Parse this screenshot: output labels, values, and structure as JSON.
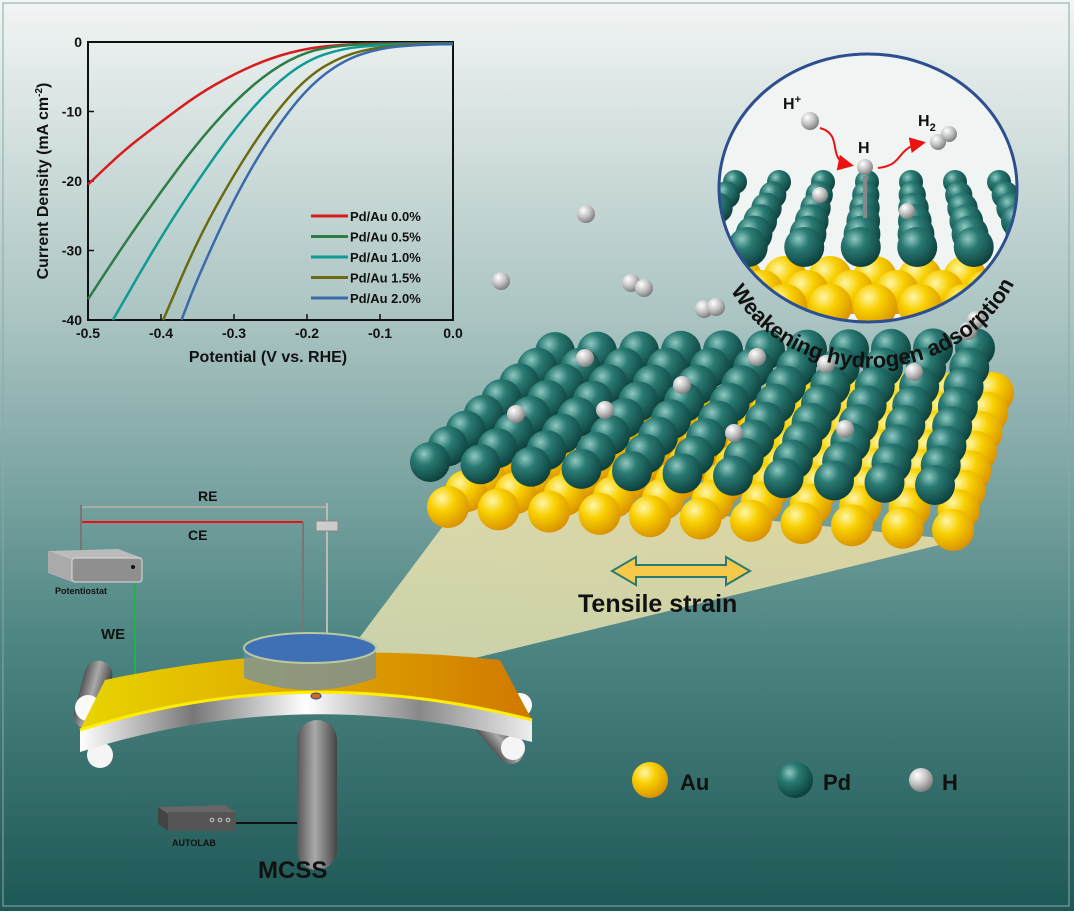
{
  "colors": {
    "bg_top": "#eef2f1",
    "bg_bottom": "#1e5856",
    "pd": "#1f6b66",
    "au": "#f5c400",
    "h": "#c8c8c8",
    "arrow": "#ee1111",
    "inset_border": "#2e4f8f"
  },
  "chart_data": {
    "type": "line",
    "xlabel": "Potential (V vs. RHE)",
    "ylabel": "Current Density (mA cm",
    "ylabel_sup": "-2",
    "ylabel_end": ")",
    "xlim": [
      -0.5,
      0.0
    ],
    "ylim": [
      -40,
      0
    ],
    "xticks": [
      "-0.5",
      "-0.4",
      "-0.3",
      "-0.2",
      "-0.1",
      "0.0"
    ],
    "yticks": [
      "0",
      "-10",
      "-20",
      "-30",
      "-40"
    ],
    "legend_position": "bottom-right",
    "grid": false,
    "series": [
      {
        "name": "Pd/Au 0.0%",
        "color": "#d81c1c",
        "x": [
          -0.5,
          -0.45,
          -0.4,
          -0.35,
          -0.3,
          -0.25,
          -0.2,
          -0.15,
          -0.1,
          0.0
        ],
        "y": [
          -20.5,
          -15.5,
          -11.5,
          -7.6,
          -4.6,
          -2.3,
          -0.9,
          -0.35,
          -0.2,
          -0.2
        ]
      },
      {
        "name": "Pd/Au 0.5%",
        "color": "#2e7d45",
        "x": [
          -0.5,
          -0.45,
          -0.4,
          -0.35,
          -0.3,
          -0.25,
          -0.2,
          -0.15,
          -0.1,
          0.0
        ],
        "y": [
          -37,
          -29,
          -21.5,
          -14.5,
          -8.6,
          -4.1,
          -1.3,
          -0.45,
          -0.25,
          -0.2
        ]
      },
      {
        "name": "Pd/Au 1.0%",
        "color": "#0f9a94",
        "x": [
          -0.466,
          -0.4,
          -0.35,
          -0.3,
          -0.25,
          -0.2,
          -0.15,
          -0.1,
          -0.05,
          0.0
        ],
        "y": [
          -40,
          -28,
          -20,
          -12.6,
          -6.6,
          -2.6,
          -0.9,
          -0.45,
          -0.3,
          -0.3
        ]
      },
      {
        "name": "Pd/Au 1.5%",
        "color": "#6b6a10",
        "x": [
          -0.397,
          -0.35,
          -0.3,
          -0.25,
          -0.2,
          -0.15,
          -0.1,
          -0.05,
          0.0
        ],
        "y": [
          -40,
          -28.5,
          -19,
          -11,
          -5,
          -1.9,
          -0.7,
          -0.35,
          -0.3
        ]
      },
      {
        "name": "Pd/Au 2.0%",
        "color": "#3a6aaa",
        "x": [
          -0.372,
          -0.35,
          -0.3,
          -0.25,
          -0.2,
          -0.15,
          -0.1,
          -0.05,
          0.0
        ],
        "y": [
          -40,
          -34,
          -22.5,
          -13.5,
          -6.6,
          -2.6,
          -0.9,
          -0.4,
          -0.3
        ]
      }
    ]
  },
  "setup": {
    "re": "RE",
    "ce": "CE",
    "we": "WE",
    "potentiostat": "Potentiostat",
    "autolab": "AUTOLAB",
    "mcss": "MCSS"
  },
  "lattice": {
    "strain_label": "Tensile strain"
  },
  "inset": {
    "h_plus": "H",
    "h_plus_sup": "+",
    "h": "H",
    "h2": "H",
    "h2_sub": "2",
    "caption": "Weakening hydrogen adsorption"
  },
  "legend": {
    "au": "Au",
    "pd": "Pd",
    "h": "H"
  }
}
